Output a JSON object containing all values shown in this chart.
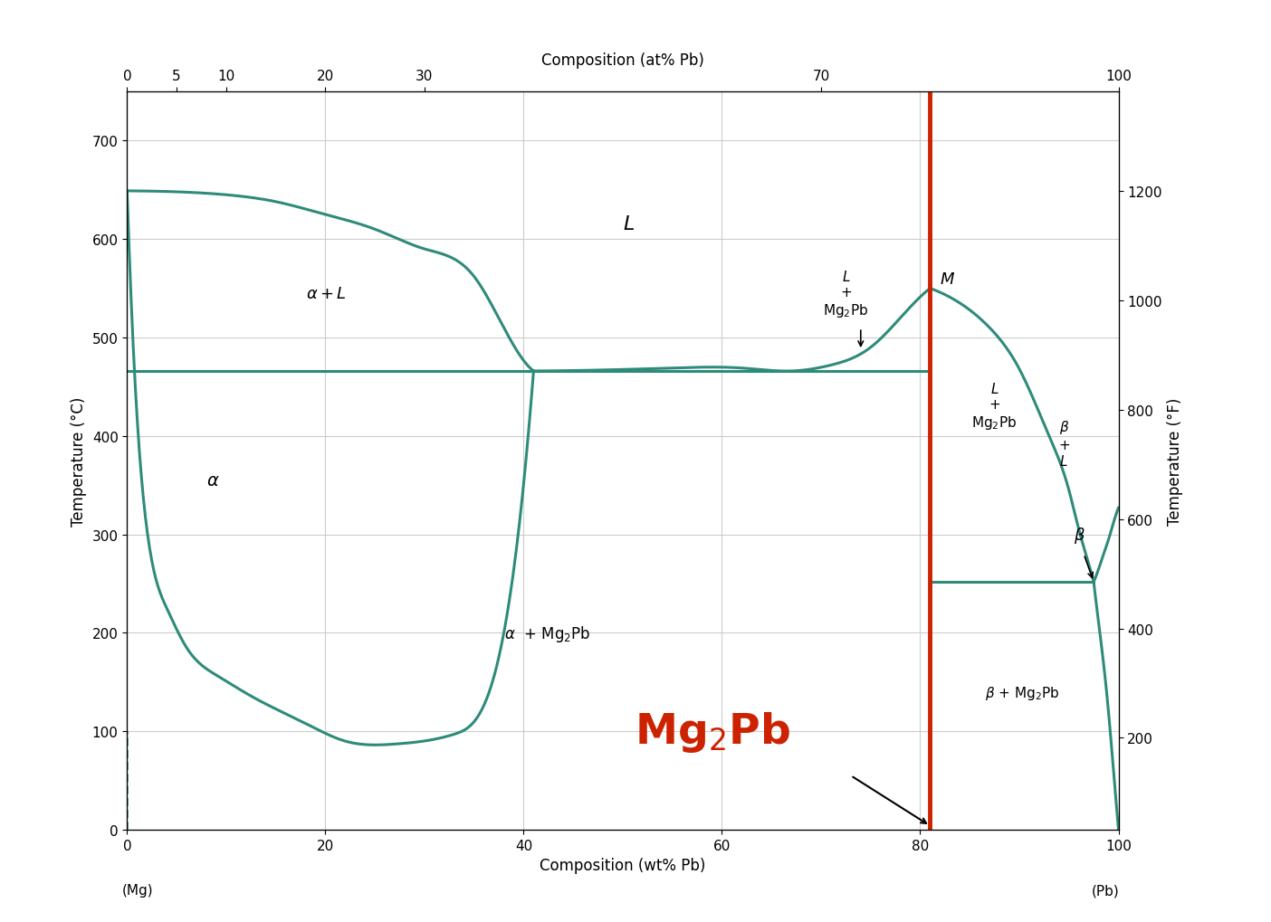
{
  "title_top": "Composition (at% Pb)",
  "xlabel": "Composition (wt% Pb)",
  "ylabel_left": "Temperature (°C)",
  "ylabel_right": "Temperature (°F)",
  "xlim": [
    0,
    100
  ],
  "ylim": [
    0,
    750
  ],
  "ylim_right": [
    32,
    1382
  ],
  "xticks_bottom": [
    0,
    20,
    40,
    60,
    80,
    100
  ],
  "xticks_top": [
    0,
    5,
    10,
    20,
    30,
    70,
    100
  ],
  "yticks_left": [
    0,
    100,
    200,
    300,
    400,
    500,
    600,
    700
  ],
  "yticks_right": [
    200,
    400,
    600,
    800,
    1000,
    1200
  ],
  "bg_color": "#ffffff",
  "curve_color": "#2e8b7a",
  "red_line_color": "#cc2200",
  "Mg2Pb_label_color": "#cc2200",
  "grid_color": "#cccccc",
  "Mg2Pb_x": 81.0,
  "eutectic1_x": 41.0,
  "eutectic1_T": 466,
  "eutectic2_x": 97.5,
  "eutectic2_T": 252,
  "congruent_x": 81.0,
  "congruent_T": 550
}
